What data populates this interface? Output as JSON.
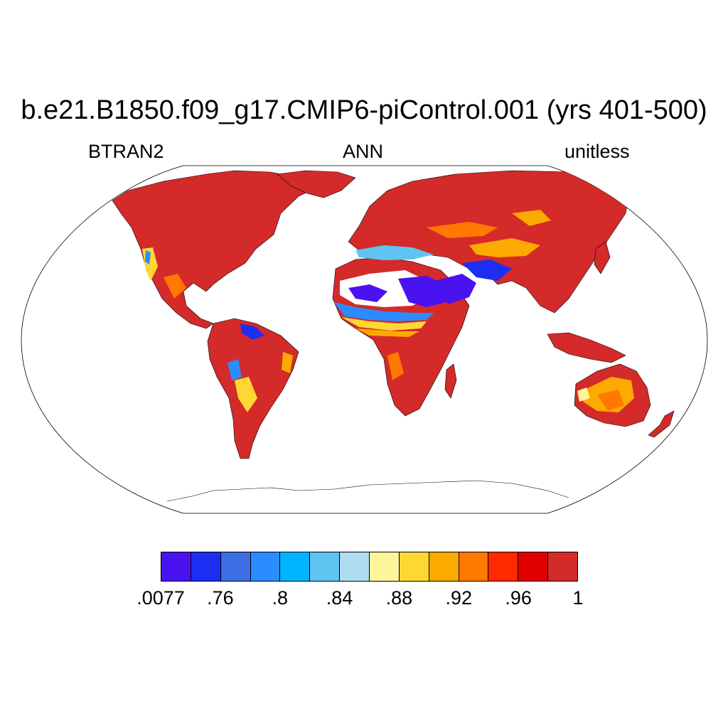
{
  "title": "b.e21.B1850.f09_g17.CMIP6-piControl.001 (yrs 401-500)",
  "subtitles": {
    "left": "BTRAN2",
    "center": "ANN",
    "right": "unitless"
  },
  "map": {
    "projection": "Robinson",
    "land_default_color": "#d42a2a",
    "ocean_color": "#ffffff",
    "coastline_color": "#000000"
  },
  "colorbar": {
    "colors": [
      "#4a12f0",
      "#1c2ef2",
      "#3c6fe3",
      "#2b8cff",
      "#00b3ff",
      "#60c4f2",
      "#b0dcf2",
      "#fff59a",
      "#fdd835",
      "#fdaa00",
      "#ff7800",
      "#ff2a00",
      "#e00000",
      "#d42a2a"
    ],
    "labels": [
      ".0077",
      ".76",
      ".8",
      ".84",
      ".88",
      ".92",
      ".96",
      "1"
    ]
  }
}
